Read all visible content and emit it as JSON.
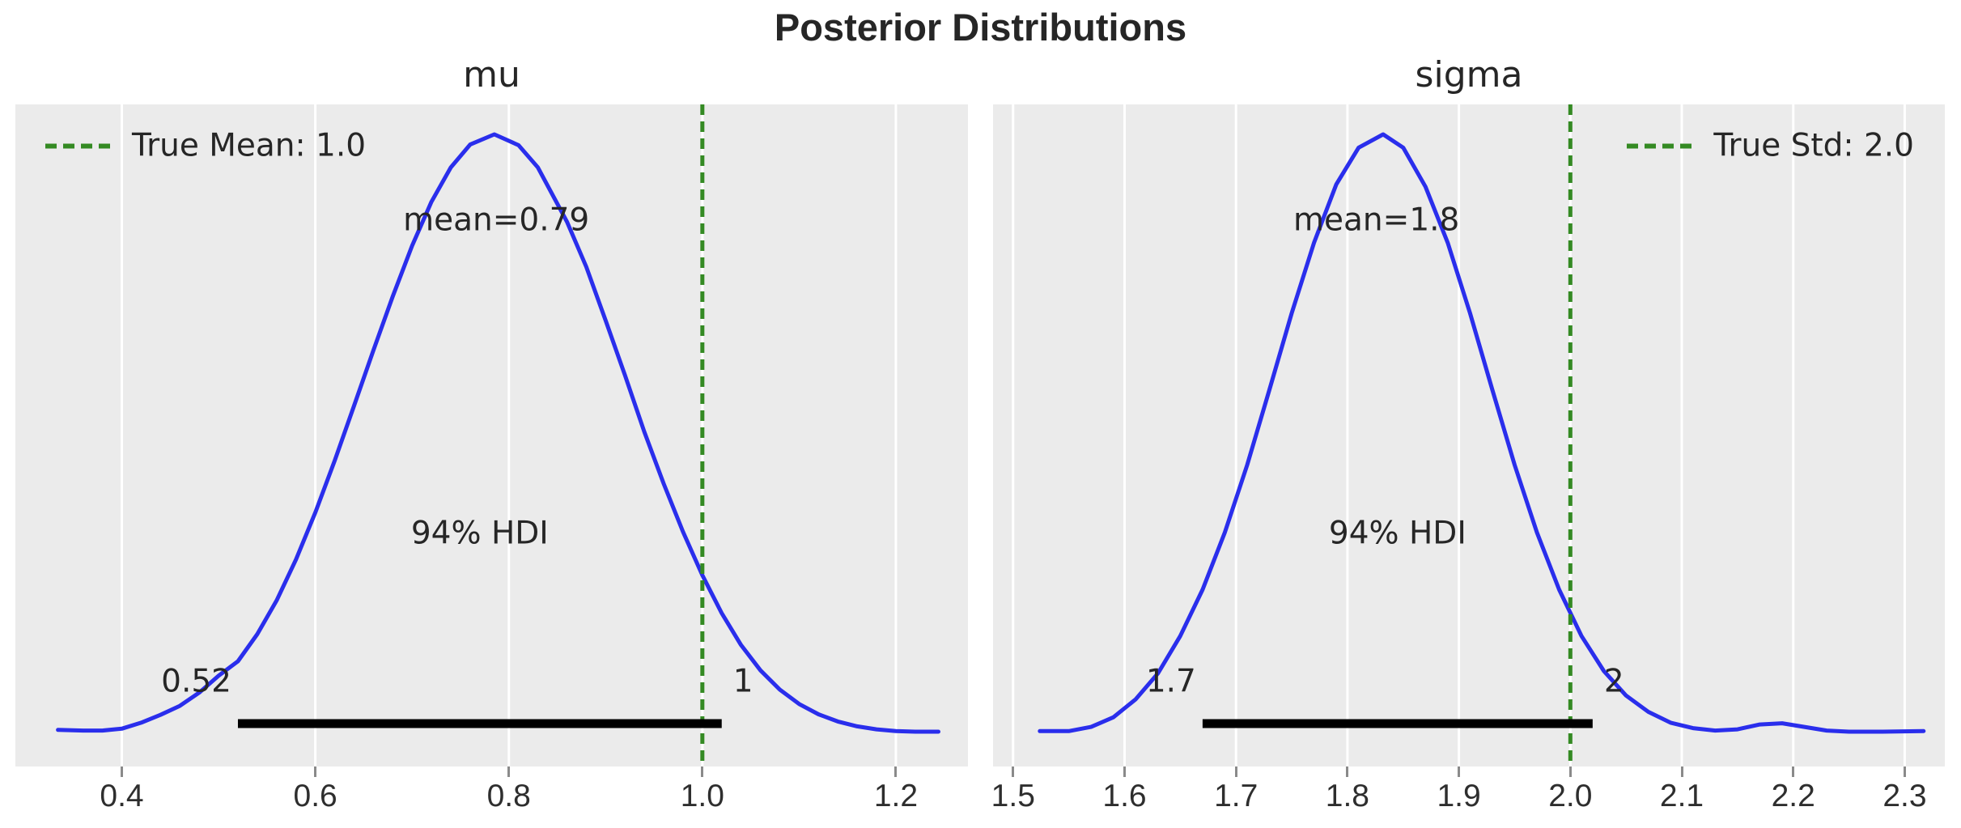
{
  "figure": {
    "title": "Posterior Distributions"
  },
  "colors": {
    "panel_bg": "#ebebeb",
    "grid": "#ffffff",
    "curve": "#2a2eec",
    "ref_line": "#348a23",
    "hdi_bar": "#000000",
    "text": "#262626",
    "tick": "#8a8a8a"
  },
  "chart_data": [
    {
      "type": "line",
      "title": "mu",
      "xlim": [
        0.29,
        1.2745
      ],
      "xticks": [
        0.4,
        0.6,
        0.8,
        1.0,
        1.2
      ],
      "xtick_labels": [
        "0.4",
        "0.6",
        "0.8",
        "1.0",
        "1.2"
      ],
      "grid": "vertical-white",
      "mean": 0.79,
      "mean_label": "mean=0.79",
      "mean_anchor_x": 0.787,
      "hdi_label": "94% HDI",
      "hdi": [
        0.52,
        1.02
      ],
      "hdi_bound_labels": [
        "0.52",
        "1"
      ],
      "ref_value": 1.0,
      "legend": {
        "label": "True Mean: 1.0",
        "position": "left",
        "marker": "green-dashed-line"
      },
      "kde": {
        "x": [
          0.334,
          0.36,
          0.38,
          0.4,
          0.42,
          0.44,
          0.46,
          0.48,
          0.5,
          0.52,
          0.54,
          0.56,
          0.58,
          0.6,
          0.62,
          0.64,
          0.66,
          0.68,
          0.7,
          0.72,
          0.74,
          0.76,
          0.785,
          0.81,
          0.83,
          0.86,
          0.88,
          0.9,
          0.92,
          0.94,
          0.96,
          0.98,
          1.0,
          1.02,
          1.04,
          1.06,
          1.08,
          1.1,
          1.12,
          1.14,
          1.16,
          1.18,
          1.2,
          1.22,
          1.244
        ],
        "density": [
          0.011,
          0.01,
          0.01,
          0.013,
          0.023,
          0.036,
          0.051,
          0.073,
          0.101,
          0.125,
          0.17,
          0.226,
          0.294,
          0.372,
          0.458,
          0.549,
          0.641,
          0.731,
          0.815,
          0.888,
          0.945,
          0.983,
          1.0,
          0.982,
          0.945,
          0.855,
          0.78,
          0.691,
          0.6,
          0.506,
          0.42,
          0.34,
          0.268,
          0.205,
          0.152,
          0.11,
          0.078,
          0.054,
          0.037,
          0.025,
          0.017,
          0.012,
          0.009,
          0.008,
          0.008
        ]
      }
    },
    {
      "type": "line",
      "title": "sigma",
      "xlim": [
        1.482,
        2.336
      ],
      "xticks": [
        1.5,
        1.6,
        1.7,
        1.8,
        1.9,
        2.0,
        2.1,
        2.2,
        2.3
      ],
      "xtick_labels": [
        "1.5",
        "1.6",
        "1.7",
        "1.8",
        "1.9",
        "2.0",
        "2.1",
        "2.2",
        "2.3"
      ],
      "grid": "vertical-white",
      "mean": 1.8,
      "mean_label": "mean=1.8",
      "mean_anchor_x": 1.826,
      "hdi_label": "94% HDI",
      "hdi": [
        1.67,
        2.02
      ],
      "hdi_bound_labels": [
        "1.7",
        "2"
      ],
      "ref_value": 2.0,
      "legend": {
        "label": "True Std: 2.0",
        "position": "right",
        "marker": "green-dashed-line"
      },
      "kde": {
        "x": [
          1.524,
          1.55,
          1.57,
          1.59,
          1.61,
          1.63,
          1.65,
          1.67,
          1.69,
          1.71,
          1.73,
          1.75,
          1.77,
          1.79,
          1.81,
          1.832,
          1.85,
          1.87,
          1.89,
          1.91,
          1.93,
          1.95,
          1.97,
          1.99,
          2.01,
          2.03,
          2.05,
          2.07,
          2.09,
          2.11,
          2.13,
          2.15,
          2.17,
          2.19,
          2.21,
          2.23,
          2.25,
          2.28,
          2.317
        ],
        "density": [
          0.009,
          0.009,
          0.016,
          0.032,
          0.062,
          0.105,
          0.167,
          0.244,
          0.339,
          0.451,
          0.576,
          0.703,
          0.82,
          0.917,
          0.978,
          1.0,
          0.978,
          0.913,
          0.82,
          0.703,
          0.576,
          0.451,
          0.339,
          0.244,
          0.167,
          0.109,
          0.068,
          0.041,
          0.023,
          0.014,
          0.01,
          0.012,
          0.02,
          0.022,
          0.016,
          0.01,
          0.008,
          0.008,
          0.009
        ]
      }
    }
  ]
}
